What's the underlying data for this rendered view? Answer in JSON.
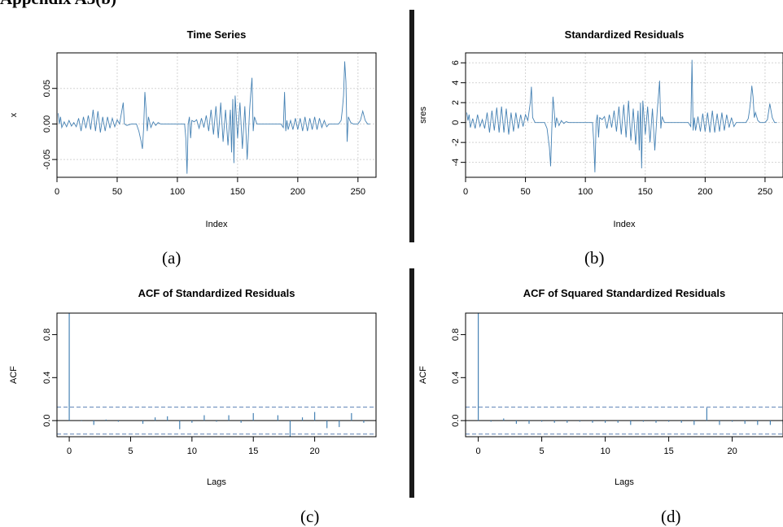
{
  "heading": "Appendix A3(b)",
  "captions": [
    "(a)",
    "(b)",
    "(c)",
    "(d)"
  ],
  "colors": {
    "series": "#4682b4",
    "band": "#5b80b4",
    "grid": "#d3d3d3",
    "axis": "#000000"
  },
  "chart_data": [
    {
      "type": "line",
      "title": "Time Series",
      "xlabel": "Index",
      "ylabel": "x",
      "xlim": [
        0,
        265
      ],
      "ylim": [
        -0.075,
        0.1
      ],
      "xticks": [
        "0",
        "50",
        "100",
        "150",
        "200",
        "250"
      ],
      "yticks": [
        "-0.05",
        "0.00",
        "0.05"
      ],
      "grid": true,
      "x": [
        1,
        2,
        3,
        4,
        6,
        8,
        10,
        12,
        14,
        16,
        18,
        20,
        22,
        24,
        26,
        28,
        30,
        32,
        34,
        36,
        38,
        40,
        42,
        44,
        46,
        48,
        50,
        52,
        54,
        55,
        56,
        58,
        60,
        62,
        64,
        66,
        68,
        70,
        71,
        72,
        73,
        74,
        75,
        76,
        78,
        80,
        82,
        84,
        86,
        88,
        90,
        92,
        94,
        96,
        98,
        100,
        102,
        104,
        106,
        107,
        108,
        109,
        110,
        111,
        112,
        114,
        116,
        118,
        120,
        122,
        124,
        126,
        128,
        130,
        132,
        134,
        136,
        138,
        140,
        142,
        144,
        145,
        146,
        147,
        148,
        150,
        152,
        154,
        156,
        158,
        160,
        161,
        162,
        163,
        164,
        166,
        168,
        170,
        172,
        174,
        176,
        178,
        180,
        182,
        184,
        186,
        188,
        189,
        190,
        191,
        192,
        194,
        196,
        198,
        200,
        202,
        204,
        206,
        208,
        210,
        212,
        214,
        216,
        218,
        220,
        222,
        224,
        226,
        228,
        230,
        232,
        234,
        236,
        237,
        238,
        239,
        240,
        241,
        242,
        244,
        246,
        248,
        250,
        252,
        254,
        256,
        258,
        260
      ],
      "y": [
        0.015,
        0.0,
        0.01,
        -0.005,
        0.003,
        -0.004,
        0.005,
        -0.003,
        0.002,
        -0.004,
        0.008,
        -0.01,
        0.01,
        -0.006,
        0.012,
        -0.008,
        0.02,
        -0.01,
        0.018,
        -0.012,
        0.01,
        -0.01,
        0.01,
        -0.006,
        0.008,
        -0.004,
        0.006,
        0.0,
        0.02,
        0.03,
        0.0,
        -0.002,
        -0.001,
        0.0,
        0.0,
        0.0,
        -0.01,
        -0.025,
        -0.035,
        -0.005,
        0.045,
        0.02,
        -0.01,
        0.01,
        -0.005,
        0.003,
        -0.002,
        0.002,
        0.0,
        0.0,
        0.0,
        0.0,
        0.0,
        0.0,
        0.0,
        0.0,
        0.0,
        0.0,
        0.0,
        -0.02,
        -0.07,
        0.0,
        0.01,
        -0.02,
        0.005,
        0.003,
        0.006,
        -0.006,
        0.008,
        -0.005,
        0.012,
        -0.01,
        0.02,
        -0.015,
        0.025,
        -0.02,
        0.03,
        -0.025,
        0.02,
        -0.03,
        0.02,
        -0.04,
        0.035,
        -0.055,
        0.04,
        -0.02,
        0.03,
        -0.035,
        0.025,
        -0.05,
        0.02,
        0.045,
        0.065,
        -0.01,
        0.01,
        0.0,
        0.0,
        0.0,
        0.0,
        0.0,
        0.0,
        0.0,
        0.0,
        0.0,
        0.0,
        0.0,
        -0.005,
        0.045,
        -0.01,
        0.005,
        -0.008,
        0.005,
        -0.008,
        0.008,
        -0.008,
        0.008,
        -0.01,
        0.01,
        -0.01,
        0.008,
        -0.008,
        0.01,
        -0.008,
        0.008,
        -0.005,
        0.005,
        -0.004,
        0.0,
        0.0,
        0.0,
        0.0,
        0.0,
        0.005,
        0.02,
        0.04,
        0.088,
        0.06,
        -0.025,
        0.01,
        0.002,
        0.0,
        0.0,
        0.0,
        0.005,
        0.018,
        0.005,
        0.0,
        0.0
      ]
    },
    {
      "type": "line",
      "title": "Standardized Residuals",
      "xlabel": "Index",
      "ylabel": "sres",
      "xlim": [
        0,
        265
      ],
      "ylim": [
        -5.5,
        7
      ],
      "xticks": [
        "0",
        "50",
        "100",
        "150",
        "200",
        "250"
      ],
      "yticks": [
        "-4",
        "-2",
        "0",
        "2",
        "4",
        "6"
      ],
      "grid": true,
      "x": [
        1,
        2,
        3,
        4,
        6,
        8,
        10,
        12,
        14,
        16,
        18,
        20,
        22,
        24,
        26,
        28,
        30,
        32,
        34,
        36,
        38,
        40,
        42,
        44,
        46,
        48,
        50,
        52,
        54,
        55,
        56,
        58,
        60,
        62,
        64,
        66,
        68,
        70,
        71,
        72,
        73,
        74,
        75,
        76,
        78,
        80,
        82,
        84,
        86,
        88,
        90,
        92,
        94,
        96,
        98,
        100,
        102,
        104,
        106,
        107,
        108,
        109,
        110,
        111,
        112,
        114,
        116,
        118,
        120,
        122,
        124,
        126,
        128,
        130,
        132,
        134,
        136,
        138,
        140,
        142,
        144,
        145,
        146,
        147,
        148,
        150,
        152,
        154,
        156,
        158,
        160,
        161,
        162,
        163,
        164,
        166,
        168,
        170,
        172,
        174,
        176,
        178,
        180,
        182,
        184,
        186,
        188,
        189,
        190,
        191,
        192,
        194,
        196,
        198,
        200,
        202,
        204,
        206,
        208,
        210,
        212,
        214,
        216,
        218,
        220,
        222,
        224,
        226,
        228,
        230,
        232,
        234,
        236,
        237,
        238,
        239,
        240,
        241,
        242,
        244,
        246,
        248,
        250,
        252,
        254,
        256,
        258,
        260
      ],
      "y": [
        1.0,
        0.2,
        0.8,
        -0.5,
        0.4,
        -0.6,
        0.8,
        -0.4,
        0.3,
        -0.6,
        1.0,
        -1.0,
        1.2,
        -0.8,
        1.5,
        -1.0,
        1.6,
        -1.0,
        1.4,
        -1.2,
        1.0,
        -0.9,
        1.0,
        -0.6,
        0.8,
        -0.4,
        0.8,
        0.2,
        2.0,
        3.6,
        0.5,
        0.0,
        0.0,
        0.0,
        0.0,
        0.0,
        -0.6,
        -2.5,
        -4.4,
        -0.5,
        2.6,
        1.2,
        -0.5,
        0.5,
        -0.3,
        0.2,
        -0.1,
        0.1,
        0.0,
        0.0,
        0.0,
        0.0,
        0.0,
        0.0,
        0.0,
        0.0,
        0.0,
        0.0,
        0.0,
        -2.0,
        -5.0,
        0.0,
        0.8,
        -1.5,
        0.5,
        0.3,
        0.6,
        -0.6,
        0.8,
        -0.5,
        1.2,
        -0.9,
        1.6,
        -1.2,
        1.8,
        -1.5,
        2.2,
        -1.8,
        1.4,
        -2.2,
        1.2,
        -2.8,
        2.0,
        -4.6,
        2.2,
        -1.2,
        1.6,
        -2.0,
        1.4,
        -2.8,
        1.2,
        2.6,
        4.2,
        -0.6,
        0.6,
        0.0,
        0.0,
        0.0,
        0.0,
        0.0,
        0.0,
        0.0,
        0.0,
        0.0,
        0.0,
        0.0,
        -0.4,
        6.3,
        -0.8,
        0.5,
        -0.8,
        0.6,
        -0.9,
        0.9,
        -0.9,
        1.0,
        -1.0,
        1.2,
        -1.0,
        0.9,
        -0.9,
        1.0,
        -0.8,
        0.8,
        -0.5,
        0.5,
        -0.4,
        0.0,
        0.0,
        0.0,
        0.0,
        0.0,
        0.4,
        1.2,
        2.2,
        3.7,
        2.6,
        0.5,
        1.0,
        0.2,
        0.0,
        0.0,
        0.0,
        0.3,
        1.9,
        0.5,
        0.0,
        0.0
      ]
    },
    {
      "type": "bar",
      "title": "ACF of Standardized Residuals",
      "xlabel": "Lags",
      "ylabel": "ACF",
      "xlim": [
        -1,
        25
      ],
      "ylim": [
        -0.15,
        1.0
      ],
      "xticks": [
        "0",
        "5",
        "10",
        "15",
        "20"
      ],
      "yticks": [
        "0.0",
        "0.4",
        "0.8"
      ],
      "confidence": 0.125,
      "lags": [
        0,
        1,
        2,
        3,
        4,
        5,
        6,
        7,
        8,
        9,
        10,
        11,
        12,
        13,
        14,
        15,
        16,
        17,
        18,
        19,
        20,
        21,
        22,
        23,
        24
      ],
      "values": [
        1.0,
        -0.005,
        -0.04,
        0.01,
        -0.01,
        0.0,
        -0.03,
        0.03,
        0.04,
        -0.08,
        -0.02,
        0.05,
        -0.01,
        0.05,
        -0.02,
        0.07,
        0.0,
        0.05,
        -0.15,
        0.03,
        0.08,
        -0.07,
        -0.06,
        0.07,
        -0.02
      ]
    },
    {
      "type": "bar",
      "title": "ACF of Squared Standardized Residuals",
      "xlabel": "Lags",
      "ylabel": "ACF",
      "xlim": [
        -1,
        24
      ],
      "ylim": [
        -0.15,
        1.0
      ],
      "xticks": [
        "0",
        "5",
        "10",
        "15",
        "20"
      ],
      "yticks": [
        "0.0",
        "0.4",
        "0.8"
      ],
      "confidence": 0.125,
      "lags": [
        0,
        1,
        2,
        3,
        4,
        5,
        6,
        7,
        8,
        9,
        10,
        11,
        12,
        13,
        14,
        15,
        16,
        17,
        18,
        19,
        20,
        21,
        22,
        23,
        24
      ],
      "values": [
        1.0,
        -0.01,
        0.02,
        -0.03,
        -0.03,
        -0.01,
        -0.02,
        -0.02,
        -0.01,
        -0.02,
        -0.02,
        -0.02,
        -0.04,
        -0.01,
        -0.02,
        -0.01,
        -0.02,
        -0.04,
        0.12,
        -0.04,
        -0.01,
        -0.03,
        -0.04,
        -0.04,
        -0.03
      ]
    }
  ]
}
